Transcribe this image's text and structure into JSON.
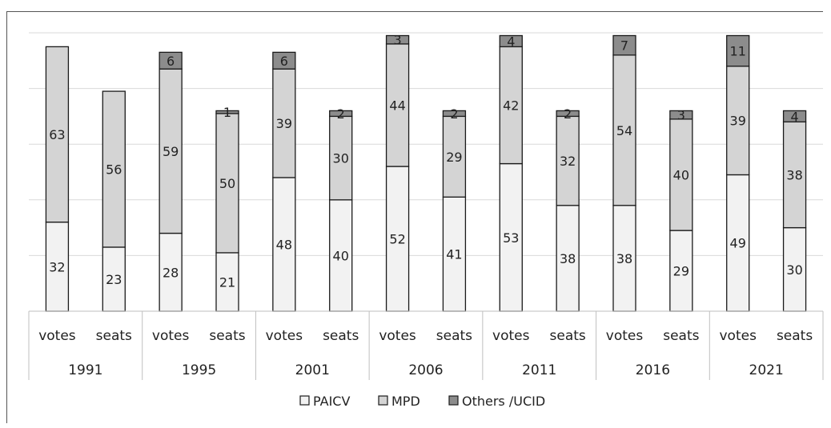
{
  "chart_data": {
    "type": "bar",
    "stacked": true,
    "title": "",
    "xlabel": "",
    "ylabel": "",
    "ylim": [
      0,
      100
    ],
    "grid": true,
    "legend_position": "bottom",
    "groups": [
      "1991",
      "1995",
      "2001",
      "2006",
      "2011",
      "2016",
      "2021"
    ],
    "subcategories": [
      "votes",
      "seats"
    ],
    "categories": [
      "1991 votes",
      "1991 seats",
      "1995 votes",
      "1995 seats",
      "2001 votes",
      "2001 seats",
      "2006 votes",
      "2006 seats",
      "2011 votes",
      "2011 seats",
      "2016 votes",
      "2016 seats",
      "2021 votes",
      "2021 seats"
    ],
    "series": [
      {
        "name": "PAICV",
        "color": "#f2f2f2",
        "values": [
          32,
          23,
          28,
          21,
          48,
          40,
          52,
          41,
          53,
          38,
          38,
          29,
          49,
          30
        ]
      },
      {
        "name": "MPD",
        "color": "#d4d4d4",
        "values": [
          63,
          56,
          59,
          50,
          39,
          30,
          44,
          29,
          42,
          32,
          54,
          40,
          39,
          38
        ]
      },
      {
        "name": "Others /UCID",
        "color": "#8c8c8c",
        "values": [
          null,
          null,
          6,
          1,
          6,
          2,
          3,
          2,
          4,
          2,
          7,
          3,
          11,
          4
        ]
      }
    ]
  }
}
